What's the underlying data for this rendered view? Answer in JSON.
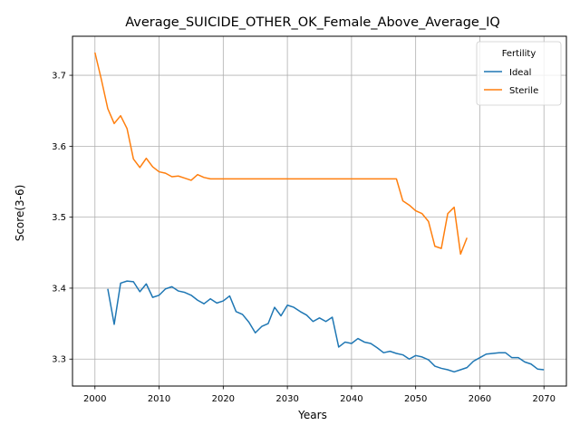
{
  "chart_data": {
    "type": "line",
    "title": "Average_SUICIDE_OTHER_OK_Female_Above_Average_IQ",
    "xlabel": "Years",
    "ylabel": "Score(3-6)",
    "xlim": [
      1996.5,
      2073.5
    ],
    "ylim": [
      3.262,
      3.755
    ],
    "xticks": [
      2000,
      2010,
      2020,
      2030,
      2040,
      2050,
      2060,
      2070
    ],
    "yticks": [
      3.3,
      3.4,
      3.5,
      3.6,
      3.7
    ],
    "xtick_labels": [
      "2000",
      "2010",
      "2020",
      "2030",
      "2040",
      "2050",
      "2060",
      "2070"
    ],
    "ytick_labels": [
      "3.3",
      "3.4",
      "3.5",
      "3.6",
      "3.7"
    ],
    "grid": true,
    "legend": {
      "title": "Fertility",
      "placement": "top-right"
    },
    "series": [
      {
        "name": "Ideal",
        "color": "#1f77b4",
        "x": [
          2002,
          2003,
          2004,
          2005,
          2006,
          2007,
          2008,
          2009,
          2010,
          2011,
          2012,
          2013,
          2014,
          2015,
          2016,
          2017,
          2018,
          2019,
          2020,
          2021,
          2022,
          2023,
          2024,
          2025,
          2026,
          2027,
          2028,
          2029,
          2030,
          2031,
          2032,
          2033,
          2034,
          2035,
          2036,
          2037,
          2038,
          2039,
          2040,
          2041,
          2042,
          2043,
          2044,
          2045,
          2046,
          2047,
          2048,
          2049,
          2050,
          2051,
          2052,
          2053,
          2054,
          2055,
          2056,
          2057,
          2058,
          2059,
          2060,
          2061,
          2062,
          2063,
          2064,
          2065,
          2066,
          2067,
          2068,
          2069,
          2070
        ],
        "y": [
          3.399,
          3.349,
          3.407,
          3.41,
          3.409,
          3.395,
          3.406,
          3.387,
          3.39,
          3.399,
          3.402,
          3.396,
          3.394,
          3.39,
          3.383,
          3.378,
          3.385,
          3.379,
          3.382,
          3.389,
          3.367,
          3.363,
          3.352,
          3.337,
          3.346,
          3.35,
          3.373,
          3.361,
          3.376,
          3.373,
          3.367,
          3.362,
          3.353,
          3.358,
          3.353,
          3.359,
          3.317,
          3.324,
          3.322,
          3.329,
          3.324,
          3.322,
          3.316,
          3.309,
          3.311,
          3.308,
          3.306,
          3.3,
          3.305,
          3.303,
          3.299,
          3.29,
          3.287,
          3.285,
          3.282,
          3.285,
          3.288,
          3.297,
          3.302,
          3.307,
          3.308,
          3.309,
          3.309,
          3.302,
          3.302,
          3.296,
          3.293,
          3.286,
          3.285
        ]
      },
      {
        "name": "Sterile",
        "color": "#ff7f0e",
        "x": [
          2000,
          2001,
          2002,
          2003,
          2004,
          2005,
          2006,
          2007,
          2008,
          2009,
          2010,
          2011,
          2012,
          2013,
          2014,
          2015,
          2016,
          2017,
          2018,
          2019,
          2020,
          2021,
          2022,
          2023,
          2024,
          2025,
          2026,
          2027,
          2028,
          2029,
          2030,
          2031,
          2032,
          2033,
          2034,
          2035,
          2036,
          2037,
          2038,
          2039,
          2040,
          2041,
          2042,
          2043,
          2044,
          2045,
          2046,
          2047,
          2048,
          2049,
          2050,
          2051,
          2052,
          2053,
          2054,
          2055,
          2056,
          2057,
          2058
        ],
        "y": [
          3.732,
          3.694,
          3.653,
          3.632,
          3.643,
          3.625,
          3.582,
          3.57,
          3.583,
          3.571,
          3.564,
          3.562,
          3.557,
          3.558,
          3.555,
          3.552,
          3.56,
          3.556,
          3.554,
          3.554,
          3.554,
          3.554,
          3.554,
          3.554,
          3.554,
          3.554,
          3.554,
          3.554,
          3.554,
          3.554,
          3.554,
          3.554,
          3.554,
          3.554,
          3.554,
          3.554,
          3.554,
          3.554,
          3.554,
          3.554,
          3.554,
          3.554,
          3.554,
          3.554,
          3.554,
          3.554,
          3.554,
          3.554,
          3.523,
          3.517,
          3.509,
          3.505,
          3.494,
          3.459,
          3.456,
          3.505,
          3.514,
          3.448,
          3.471
        ]
      }
    ]
  }
}
